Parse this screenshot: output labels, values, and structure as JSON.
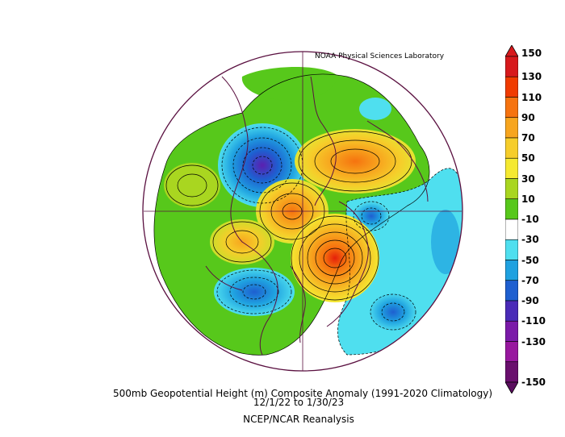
{
  "header": {
    "credit": "NOAA Physical Sciences Laboratory"
  },
  "footer": {
    "title": "500mb Geopotential Height (m) Composite Anomaly (1991-2020 Climatology)",
    "dates": "12/1/22  to 1/30/23",
    "source": "NCEP/NCAR Reanalysis"
  },
  "colorbar": {
    "labels": [
      "150",
      "130",
      "110",
      "90",
      "70",
      "50",
      "30",
      "10",
      "-10",
      "-30",
      "-50",
      "-70",
      "-90",
      "-110",
      "-130",
      "-150"
    ],
    "colors": [
      "#d7191c",
      "#f03b00",
      "#f6730f",
      "#f7a51e",
      "#f6cd2a",
      "#f5e930",
      "#a9d620",
      "#57c81b",
      "#ffffff",
      "#4fdfef",
      "#1fa1e0",
      "#1e5fd0",
      "#4a2bb8",
      "#7b1aa9",
      "#98179f",
      "#6a0f6e"
    ]
  },
  "map": {
    "projection": "north-polar-stereographic",
    "anomaly_centers": [
      {
        "sign": "negative",
        "region": "Bering Sea / Alaska"
      },
      {
        "sign": "positive",
        "region": "Arctic / Greenland"
      },
      {
        "sign": "positive",
        "region": "North Atlantic / Europe"
      },
      {
        "sign": "negative",
        "region": "Eastern North Pacific"
      },
      {
        "sign": "negative",
        "region": "Central Asia"
      }
    ]
  }
}
